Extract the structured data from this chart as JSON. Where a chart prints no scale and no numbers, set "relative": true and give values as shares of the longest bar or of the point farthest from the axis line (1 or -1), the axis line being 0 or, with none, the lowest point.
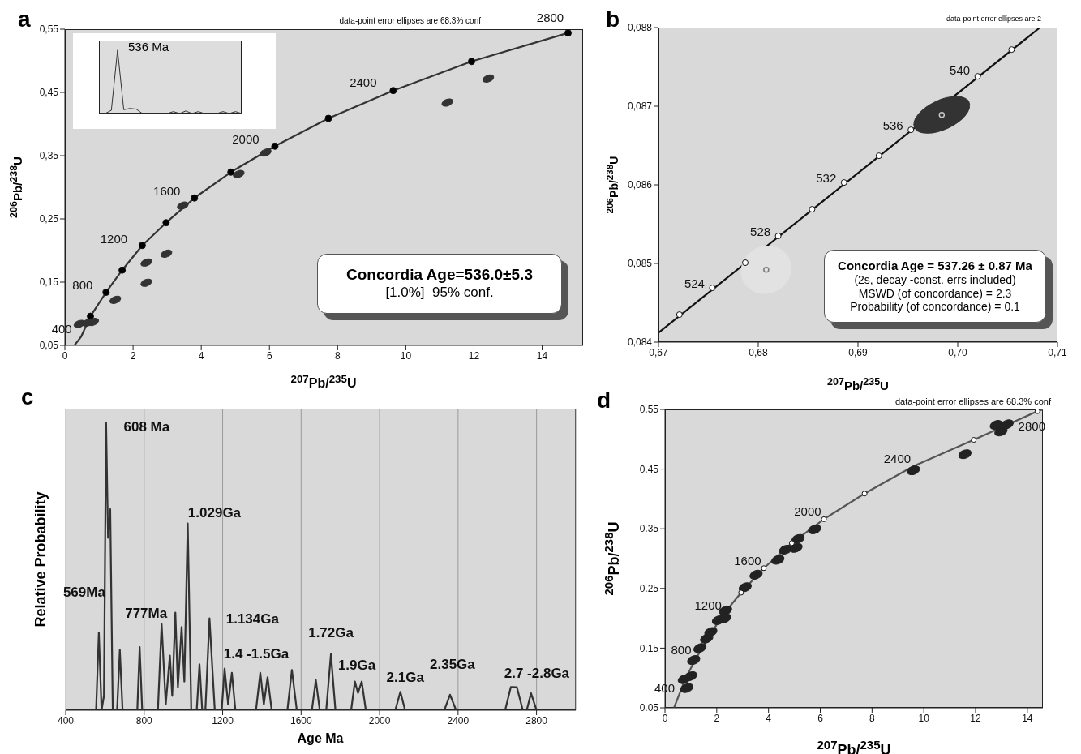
{
  "chart_data": [
    {
      "type": "scatter",
      "title": "a",
      "xlabel": "$^{207}$Pb/$^{235}$U",
      "ylabel": "$^{206}$Pb/$^{238}$U",
      "xlim": [
        0,
        15.2
      ],
      "xticks": [
        0,
        2,
        4,
        6,
        8,
        10,
        12,
        14
      ],
      "ylim": [
        0.05,
        0.55
      ],
      "yticks": [
        {
          "value": 0.05,
          "label": "0,05"
        },
        {
          "value": 0.15,
          "label": "0,15"
        },
        {
          "value": 0.25,
          "label": "0,25"
        },
        {
          "value": 0.35,
          "label": "0,35"
        },
        {
          "value": 0.45,
          "label": "0,45"
        },
        {
          "value": 0.55,
          "label": "0,55"
        }
      ],
      "series": [
        {
          "type": "line",
          "marker": "none",
          "color": "#333333",
          "x": [
            0.28,
            0.48,
            0.75,
            1.21,
            1.68,
            2.27,
            2.97,
            3.8,
            4.87,
            6.16,
            7.73,
            9.63,
            11.93,
            14.76
          ],
          "values": [
            0.05,
            0.064,
            0.096,
            0.134,
            0.169,
            0.208,
            0.244,
            0.283,
            0.324,
            0.365,
            0.409,
            0.453,
            0.499,
            0.544
          ]
        },
        {
          "type": "scatter",
          "marker": "circle",
          "color": "#000000",
          "x": [
            0.75,
            1.21,
            1.68,
            2.27,
            2.97,
            3.8,
            4.87,
            6.16,
            7.73,
            9.63,
            11.93,
            14.76
          ],
          "values": [
            0.096,
            0.134,
            0.169,
            0.208,
            0.244,
            0.283,
            0.324,
            0.365,
            0.409,
            0.453,
            0.499,
            0.544
          ]
        },
        {
          "type": "scatter",
          "color": "#333333",
          "x": [
            0.43,
            0.68,
            0.83,
            1.48,
            2.39,
            2.39,
            2.98,
            3.46,
            5.1,
            5.89,
            11.22,
            12.42
          ],
          "values": [
            0.084,
            0.086,
            0.087,
            0.122,
            0.181,
            0.149,
            0.195,
            0.271,
            0.321,
            0.355,
            0.434,
            0.472
          ]
        }
      ],
      "annotations": [
        "data-point error ellipses are 68.3% conf",
        "Concordia Age=536.0±5.3",
        "[1.0%]  95% conf.",
        {
          "text": "400",
          "x": 0.48,
          "y": 0.064
        },
        {
          "text": "800",
          "x": 1.21,
          "y": 0.134
        },
        {
          "text": "1200",
          "x": 2.27,
          "y": 0.208
        },
        {
          "text": "1600",
          "x": 3.8,
          "y": 0.283
        },
        {
          "text": "2000",
          "x": 6.16,
          "y": 0.365
        },
        {
          "text": "2400",
          "x": 9.63,
          "y": 0.453
        },
        {
          "text": "2800",
          "x": 14.76,
          "y": 0.544
        }
      ]
    },
    {
      "type": "scatter",
      "title": "b",
      "xlabel": "$^{207}$Pb/$^{235}$U",
      "ylabel": "$^{206}$Pb/$^{238}$U",
      "xlim": [
        0.67,
        0.71
      ],
      "xticks": [
        {
          "value": 0.67,
          "label": "0,67"
        },
        {
          "value": 0.68,
          "label": "0,68"
        },
        {
          "value": 0.69,
          "label": "0,69"
        },
        {
          "value": 0.7,
          "label": "0,70"
        },
        {
          "value": 0.71,
          "label": "0,71"
        }
      ],
      "ylim": [
        0.084,
        0.088
      ],
      "yticks": [
        {
          "value": 0.084,
          "label": "0,084"
        },
        {
          "value": 0.085,
          "label": "0,085"
        },
        {
          "value": 0.086,
          "label": "0,086"
        },
        {
          "value": 0.087,
          "label": "0,087"
        },
        {
          "value": 0.088,
          "label": "0,088"
        }
      ],
      "series": [
        {
          "type": "scatter",
          "color": "#e2e2e2",
          "x": [
            0.6808
          ],
          "values": [
            0.08492
          ],
          "xerrors": [
            0.0025
          ],
          "errors": [
            0.0003
          ]
        },
        {
          "type": "scatter",
          "color": "#333333",
          "x": [
            0.6984
          ],
          "values": [
            0.08689
          ],
          "xerrors": [
            0.0024
          ],
          "errors": [
            0.0002
          ]
        },
        {
          "type": "line",
          "marker": "none",
          "color": "#111111",
          "x": [
            0.67,
            0.70824
          ],
          "values": [
            0.08412,
            0.088
          ]
        },
        {
          "type": "scatter",
          "marker": "circle",
          "color": "#ffffff",
          "x": [
            0.6721,
            0.6754,
            0.6787,
            0.682,
            0.6854,
            0.6886,
            0.6921,
            0.6953,
            0.702,
            0.7054
          ],
          "values": [
            0.08435,
            0.08469,
            0.08501,
            0.08535,
            0.08569,
            0.08603,
            0.08637,
            0.0867,
            0.08738,
            0.08772
          ]
        }
      ],
      "annotations": [
        "data-point error ellipses are 2",
        "Concordia Age = 537.26 ± 0.87 Ma",
        "(2s, decay -const. errs included)",
        "MSWD (of concordance) = 2.3",
        "Probability (of concordance) = 0.1",
        {
          "text": "524",
          "x": 0.6754,
          "y": 0.08469
        },
        {
          "text": "528",
          "x": 0.682,
          "y": 0.08535
        },
        {
          "text": "532",
          "x": 0.6886,
          "y": 0.08603
        },
        {
          "text": "536",
          "x": 0.6953,
          "y": 0.0867
        },
        {
          "text": "540",
          "x": 0.702,
          "y": 0.08738
        }
      ]
    },
    {
      "type": "line",
      "title": "c",
      "xlabel": "Age Ma",
      "ylabel": "Relative Probability",
      "relative": true,
      "grid": "x",
      "xlim": [
        400,
        3000
      ],
      "xticks": [
        400,
        800,
        1200,
        1600,
        2000,
        2400,
        2800
      ],
      "series": [
        {
          "color": "#333333",
          "x": [
            400,
            555,
            569,
            583,
            595,
            606,
            616,
            627,
            640,
            662,
            676,
            690,
            765,
            777,
            790,
            870,
            889,
            910,
            931,
            943,
            959,
            972,
            991,
            1005,
            1022,
            1040,
            1068,
            1082,
            1096,
            1112,
            1133,
            1160,
            1195,
            1210,
            1228,
            1247,
            1265,
            1370,
            1392,
            1410,
            1429,
            1450,
            1530,
            1553,
            1578,
            1655,
            1675,
            1695,
            1728,
            1752,
            1775,
            1855,
            1874,
            1890,
            1909,
            1930,
            2080,
            2106,
            2130,
            2330,
            2359,
            2390,
            2640,
            2669,
            2700,
            2730,
            2750,
            2772,
            2800,
            3000
          ],
          "values": [
            0,
            0,
            0.27,
            0,
            0.05,
            1.0,
            0.6,
            0.7,
            0,
            0,
            0.21,
            0,
            0,
            0.22,
            0,
            0,
            0.3,
            0.02,
            0.19,
            0.05,
            0.34,
            0.08,
            0.29,
            0.1,
            0.65,
            0,
            0,
            0.16,
            0,
            0,
            0.32,
            0,
            0,
            0.145,
            0.02,
            0.13,
            0,
            0,
            0.13,
            0.02,
            0.115,
            0,
            0,
            0.14,
            0,
            0,
            0.105,
            0,
            0,
            0.195,
            0,
            0,
            0.1,
            0.06,
            0.1,
            0,
            0,
            0.064,
            0,
            0,
            0.054,
            0,
            0,
            0.081,
            0.08,
            0,
            0,
            0.059,
            0,
            0
          ]
        }
      ],
      "annotations": [
        {
          "text": "608  Ma",
          "x": 606,
          "y": 1.0
        },
        {
          "text": "569Ma",
          "x": 569,
          "y": 0.27
        },
        {
          "text": "777Ma",
          "x": 777,
          "y": 0.22
        },
        {
          "text": "1.029Ga",
          "x": 1022,
          "y": 0.65
        },
        {
          "text": "1.134Ga",
          "x": 1133,
          "y": 0.32
        },
        {
          "text": "1.4 -1.5Ga",
          "x": 1392,
          "y": 0.13
        },
        {
          "text": "1.72Ga",
          "x": 1752,
          "y": 0.195
        },
        {
          "text": "1.9Ga",
          "x": 1909,
          "y": 0.1
        },
        {
          "text": "2.1Ga",
          "x": 2106,
          "y": 0.064
        },
        {
          "text": "2.35Ga",
          "x": 2359,
          "y": 0.054
        },
        {
          "text": "2.7 -2.8Ga",
          "x": 2669,
          "y": 0.081
        }
      ]
    },
    {
      "type": "scatter",
      "title": "d",
      "xlabel": "$^{207}$Pb/$^{235}$U",
      "ylabel": "$^{206}$Pb/$^{238}$U",
      "xlim": [
        0,
        14.6
      ],
      "xticks": [
        0,
        2,
        4,
        6,
        8,
        10,
        12,
        14
      ],
      "ylim": [
        0.05,
        0.55
      ],
      "yticks": [
        0.05,
        0.15,
        0.25,
        0.35,
        0.45,
        0.55
      ],
      "series": [
        {
          "type": "scatter",
          "color": "#222222",
          "x": [
            0.75,
            0.99,
            0.84,
            1.11,
            1.35,
            1.61,
            1.77,
            2.07,
            2.31,
            2.34,
            3.1,
            3.52,
            4.36,
            4.66,
            5.06,
            5.14,
            5.78,
            9.6,
            11.59,
            12.8,
            12.98,
            13.22
          ],
          "values": [
            0.098,
            0.103,
            0.083,
            0.13,
            0.15,
            0.166,
            0.177,
            0.197,
            0.2,
            0.213,
            0.252,
            0.273,
            0.298,
            0.315,
            0.318,
            0.333,
            0.349,
            0.448,
            0.475,
            0.524,
            0.513,
            0.525
          ]
        },
        {
          "type": "line",
          "marker": "none",
          "color": "#555555",
          "x": [
            0.35,
            0.8,
            1.19,
            1.68,
            2.23,
            2.94,
            3.82,
            4.9,
            6.14,
            7.71,
            9.6,
            11.93,
            14.39,
            14.6
          ],
          "values": [
            0.05,
            0.1,
            0.132,
            0.168,
            0.205,
            0.243,
            0.284,
            0.326,
            0.366,
            0.409,
            0.455,
            0.499,
            0.547,
            0.55
          ]
        },
        {
          "type": "scatter",
          "marker": "circle",
          "color": "#ffffff",
          "x": [
            2.94,
            3.82,
            4.9,
            6.14,
            7.71,
            11.93,
            14.39
          ],
          "values": [
            0.243,
            0.284,
            0.326,
            0.366,
            0.409,
            0.499,
            0.547
          ]
        }
      ],
      "annotations": [
        "data-point error ellipses are 68.3% conf",
        {
          "text": "400",
          "x": 0.8,
          "y": 0.1
        },
        {
          "text": "800",
          "x": 1.19,
          "y": 0.132
        },
        {
          "text": "1200",
          "x": 2.23,
          "y": 0.205
        },
        {
          "text": "1600",
          "x": 3.82,
          "y": 0.284
        },
        {
          "text": "2000",
          "x": 6.14,
          "y": 0.366
        },
        {
          "text": "2400",
          "x": 9.6,
          "y": 0.455
        },
        {
          "text": "2800",
          "x": 14.39,
          "y": 0.547
        }
      ]
    },
    {
      "type": "line",
      "relative": true,
      "tick_labels": false,
      "categories": [
        null,
        null,
        null,
        null,
        null,
        null,
        null,
        null,
        null,
        null,
        null,
        null,
        null,
        null,
        null,
        null,
        null,
        null,
        null,
        null,
        null,
        null,
        null,
        null
      ],
      "series": [
        {
          "color": "#333333",
          "values": [
            0,
            0,
            0.05,
            1,
            0.06,
            0.08,
            0.07,
            0,
            0,
            0,
            0,
            0,
            0.03,
            0,
            0.04,
            0,
            0.03,
            0,
            0,
            0,
            0.03,
            0,
            0.03,
            0
          ]
        }
      ],
      "annotations": [
        "536 Ma"
      ]
    }
  ]
}
